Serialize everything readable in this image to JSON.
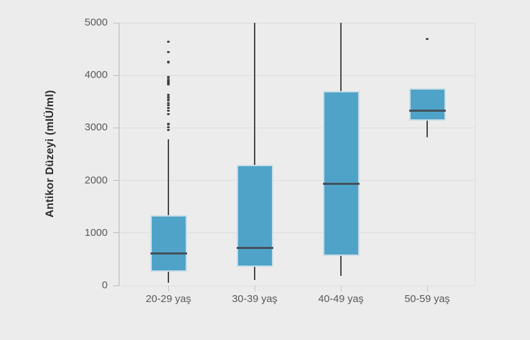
{
  "chart_data": {
    "type": "boxplot",
    "title": "",
    "xlabel": "",
    "ylabel": "Antikor Düzeyi (mIÜ/ml)",
    "ylim": [
      0,
      5000
    ],
    "yticks": [
      0,
      1000,
      2000,
      3000,
      4000,
      5000
    ],
    "ytick_labels": [
      "0",
      "1000",
      "2000",
      "3000",
      "4000",
      "5000"
    ],
    "categories": [
      "20-29 yaş",
      "30-39 yaş",
      "40-49 yaş",
      "50-59 yaş"
    ],
    "grid": true,
    "legend": false,
    "series": [
      {
        "category": "20-29 yaş",
        "whisker_low": 50,
        "q1": 260,
        "median": 610,
        "q3": 1340,
        "whisker_high": 2780,
        "outliers": [
          2960,
          3010,
          3070,
          3260,
          3330,
          3380,
          3430,
          3470,
          3530,
          3580,
          3630,
          3830,
          3870,
          3910,
          3960,
          4250,
          4440,
          4640
        ]
      },
      {
        "category": "30-39 yaş",
        "whisker_low": 100,
        "q1": 350,
        "median": 720,
        "q3": 2300,
        "whisker_high": 5000,
        "outliers": []
      },
      {
        "category": "40-49 yaş",
        "whisker_low": 190,
        "q1": 560,
        "median": 1930,
        "q3": 3700,
        "whisker_high": 5000,
        "outliers": []
      },
      {
        "category": "50-59 yaş",
        "whisker_low": 2820,
        "q1": 3130,
        "median": 3330,
        "q3": 3750,
        "whisker_high": 3750,
        "outliers": [
          4690
        ]
      }
    ],
    "colors": {
      "background": "#ECECEC",
      "box_fill": "#4FA3C8",
      "box_border": "#C9DDE8",
      "median": "#44505A",
      "whisker": "#474747",
      "outlier": "#2A2A2A",
      "grid": "#DCDCDC",
      "axis": "#B5B5B5",
      "tick_label": "#595959",
      "axis_title": "#2E2E2E"
    }
  }
}
